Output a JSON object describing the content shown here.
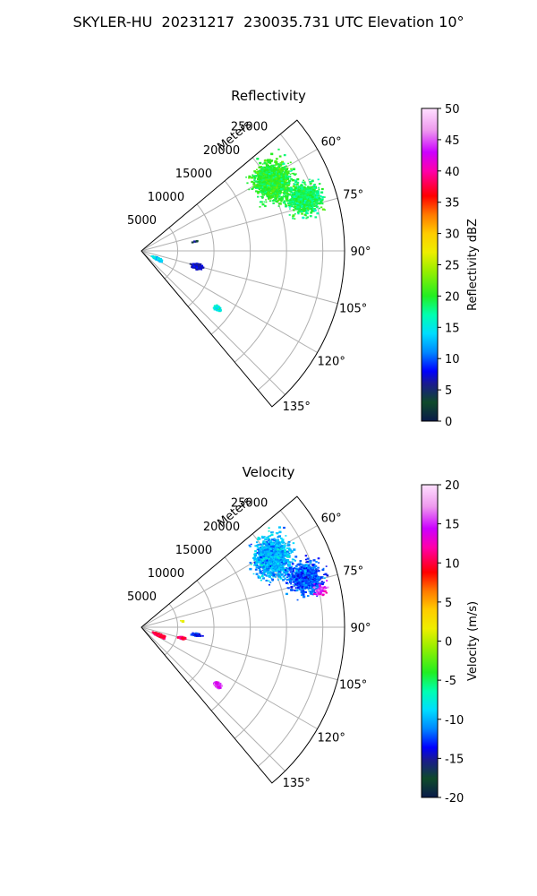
{
  "figure_title": "SKYLER-HU  20231217  230035.731 UTC Elevation 10°",
  "chart_data": [
    {
      "type": "heatmap",
      "title": "Reflectivity",
      "radial_label": "Meters",
      "radial_ticks": [
        "5000",
        "10000",
        "15000",
        "20000",
        "25000"
      ],
      "angle_ticks": [
        "60°",
        "75°",
        "90°",
        "105°",
        "120°",
        "135°"
      ],
      "angle_range_deg": [
        50,
        140
      ],
      "range_max_m": 28000,
      "colorbar": {
        "label": "Reflectivity dBZ",
        "ticks": [
          "0",
          "5",
          "10",
          "15",
          "20",
          "25",
          "30",
          "35",
          "40",
          "45",
          "50"
        ],
        "range": [
          0,
          50
        ]
      },
      "regions": [
        {
          "azimuth_deg": 62,
          "range_m": 20500,
          "value": 20,
          "azimuth_spread_deg": 12,
          "range_spread_m": 4000,
          "density": 1300
        },
        {
          "azimuth_deg": 72,
          "range_m": 23500,
          "value": 19,
          "azimuth_spread_deg": 8,
          "range_spread_m": 3500,
          "density": 900
        },
        {
          "azimuth_deg": 115,
          "range_m": 2300,
          "value": 14,
          "azimuth_spread_deg": 6,
          "range_spread_m": 1000,
          "density": 280
        },
        {
          "azimuth_deg": 105,
          "range_m": 7800,
          "value": 7,
          "azimuth_spread_deg": 4,
          "range_spread_m": 1200,
          "density": 220
        },
        {
          "azimuth_deg": 127,
          "range_m": 13000,
          "value": 15,
          "azimuth_spread_deg": 2,
          "range_spread_m": 800,
          "density": 150
        },
        {
          "azimuth_deg": 79,
          "range_m": 7500,
          "value": 4,
          "azimuth_spread_deg": 1,
          "range_spread_m": 600,
          "density": 5
        }
      ]
    },
    {
      "type": "heatmap",
      "title": "Velocity",
      "radial_label": "Meters",
      "radial_ticks": [
        "5000",
        "10000",
        "15000",
        "20000",
        "25000"
      ],
      "angle_ticks": [
        "60°",
        "75°",
        "90°",
        "105°",
        "120°",
        "135°"
      ],
      "angle_range_deg": [
        50,
        140
      ],
      "range_max_m": 28000,
      "colorbar": {
        "label": "Velocity (m/s)",
        "ticks": [
          "-20",
          "-15",
          "-10",
          "-5",
          "0",
          "5",
          "10",
          "15",
          "20"
        ],
        "range": [
          -20,
          20
        ]
      },
      "regions": [
        {
          "azimuth_deg": 62,
          "range_m": 20500,
          "value": -10,
          "azimuth_spread_deg": 12,
          "range_spread_m": 4000,
          "density": 1300
        },
        {
          "azimuth_deg": 73,
          "range_m": 23500,
          "value": -12,
          "azimuth_spread_deg": 8,
          "range_spread_m": 3500,
          "density": 900
        },
        {
          "azimuth_deg": 78,
          "range_m": 25000,
          "value": 15,
          "azimuth_spread_deg": 3,
          "range_spread_m": 1500,
          "density": 60
        },
        {
          "azimuth_deg": 113,
          "range_m": 2500,
          "value": 10,
          "azimuth_spread_deg": 6,
          "range_spread_m": 1200,
          "density": 320
        },
        {
          "azimuth_deg": 104,
          "range_m": 5600,
          "value": 11,
          "azimuth_spread_deg": 2,
          "range_spread_m": 700,
          "density": 120
        },
        {
          "azimuth_deg": 97,
          "range_m": 7500,
          "value": -13,
          "azimuth_spread_deg": 2,
          "range_spread_m": 900,
          "density": 90
        },
        {
          "azimuth_deg": 127,
          "range_m": 13000,
          "value": 15,
          "azimuth_spread_deg": 2,
          "range_spread_m": 800,
          "density": 150
        },
        {
          "azimuth_deg": 80,
          "range_m": 5500,
          "value": 2,
          "azimuth_spread_deg": 1,
          "range_spread_m": 500,
          "density": 4
        }
      ]
    }
  ]
}
